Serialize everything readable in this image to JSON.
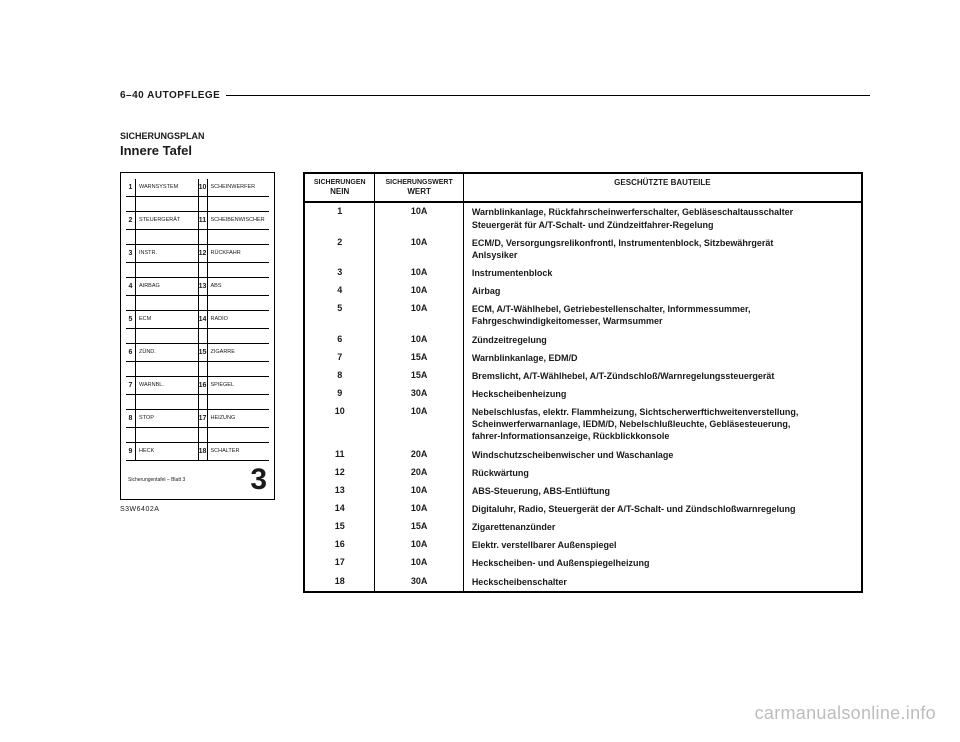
{
  "header": "6–40 AUTOPFLEGE",
  "subtitle_small": "SICHERUNGSPLAN",
  "subtitle": "Innere Tafel",
  "diagram_code": "S3W6402A",
  "watermark": "carmanualsonline.info",
  "fusebox": {
    "footer_text": "Sicherungentafel – Blatt 3",
    "footer_num": "3",
    "cells": [
      {
        "n": "1",
        "l": "WARNSYSTEM"
      },
      {
        "n": "10",
        "l": "SCHEINWERFER"
      },
      {
        "n": "",
        "l": ""
      },
      {
        "n": "",
        "l": ""
      },
      {
        "n": "2",
        "l": "STEUERGERÄT"
      },
      {
        "n": "11",
        "l": "SCHEIBENWISCHER"
      },
      {
        "n": "",
        "l": ""
      },
      {
        "n": "",
        "l": ""
      },
      {
        "n": "3",
        "l": "INSTR."
      },
      {
        "n": "12",
        "l": "RÜCKFAHR"
      },
      {
        "n": "",
        "l": ""
      },
      {
        "n": "",
        "l": ""
      },
      {
        "n": "4",
        "l": "AIRBAG"
      },
      {
        "n": "13",
        "l": "ABS"
      },
      {
        "n": "",
        "l": ""
      },
      {
        "n": "",
        "l": ""
      },
      {
        "n": "5",
        "l": "ECM"
      },
      {
        "n": "14",
        "l": "RADIO"
      },
      {
        "n": "",
        "l": ""
      },
      {
        "n": "",
        "l": ""
      },
      {
        "n": "6",
        "l": "ZÜND."
      },
      {
        "n": "15",
        "l": "ZIGARRE"
      },
      {
        "n": "",
        "l": ""
      },
      {
        "n": "",
        "l": ""
      },
      {
        "n": "7",
        "l": "WARNBL."
      },
      {
        "n": "16",
        "l": "SPIEGEL"
      },
      {
        "n": "",
        "l": ""
      },
      {
        "n": "",
        "l": ""
      },
      {
        "n": "8",
        "l": "STOP"
      },
      {
        "n": "17",
        "l": "HEIZUNG"
      },
      {
        "n": "",
        "l": ""
      },
      {
        "n": "",
        "l": ""
      },
      {
        "n": "9",
        "l": "HECK"
      },
      {
        "n": "18",
        "l": "SCHALTER"
      }
    ]
  },
  "table": {
    "head_col1a": "SICHERUNGEN",
    "head_col1b": "NEIN",
    "head_col2a": "SICHERUNGSWERT",
    "head_col2b": "WERT",
    "head_col3": "GESCHÜTZTE BAUTEILE",
    "rows": [
      {
        "n": "1",
        "v": "10A",
        "d": "Warnblinkanlage, Rückfahrscheinwerferschalter, Gebläseschaltausschalter\nSteuergerät für A/T-Schalt- und Zündzeitfahrer-Regelung"
      },
      {
        "n": "2",
        "v": "10A",
        "d": "ECM/D, Versorgungsrelikonfrontl, Instrumentenblock, Sitzbewährgerät\nAnlsysiker"
      },
      {
        "n": "3",
        "v": "10A",
        "d": "Instrumentenblock"
      },
      {
        "n": "4",
        "v": "10A",
        "d": "Airbag"
      },
      {
        "n": "5",
        "v": "10A",
        "d": "ECM, A/T-Wählhebel, Getriebestellenschalter, Informmessummer,\nFahrgeschwindigkeitomesser, Warmsummer"
      },
      {
        "n": "6",
        "v": "10A",
        "d": "Zündzeitregelung"
      },
      {
        "n": "7",
        "v": "15A",
        "d": "Warnblinkanlage, EDM/D"
      },
      {
        "n": "8",
        "v": "15A",
        "d": "Bremslicht, A/T-Wählhebel, A/T-Zündschloß/Warnregelungssteuergerät"
      },
      {
        "n": "9",
        "v": "30A",
        "d": "Heckscheibenheizung"
      },
      {
        "n": "10",
        "v": "10A",
        "d": "Nebelschlusfas, elektr. Flammheizung, Sichtscherwerftichweitenverstellung,\nScheinwerferwarnanlage, IEDM/D, Nebelschlußleuchte, Gebläsesteuerung,\nfahrer-Informationsanzeige, Rückblickkonsole"
      },
      {
        "n": "11",
        "v": "20A",
        "d": "Windschutzscheibenwischer und Waschanlage"
      },
      {
        "n": "12",
        "v": "20A",
        "d": "Rückwärtung"
      },
      {
        "n": "13",
        "v": "10A",
        "d": "ABS-Steuerung, ABS-Entlüftung"
      },
      {
        "n": "14",
        "v": "10A",
        "d": "Digitaluhr, Radio, Steuergerät der A/T-Schalt- und Zündschloßwarnregelung"
      },
      {
        "n": "15",
        "v": "15A",
        "d": "Zigarettenanzünder"
      },
      {
        "n": "16",
        "v": "10A",
        "d": "Elektr. verstellbarer Außenspiegel"
      },
      {
        "n": "17",
        "v": "10A",
        "d": "Heckscheiben- und Außenspiegelheizung"
      },
      {
        "n": "18",
        "v": "30A",
        "d": "Heckscheibenschalter"
      }
    ]
  }
}
